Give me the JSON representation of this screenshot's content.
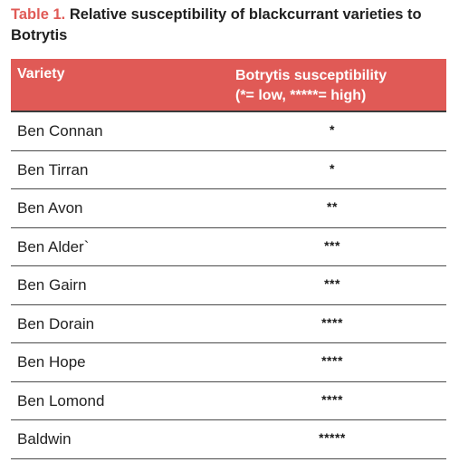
{
  "caption": {
    "label": "Table 1.",
    "title": "Relative susceptibility of blackcurrant varieties to Botrytis"
  },
  "table": {
    "headers": {
      "variety": "Variety",
      "susceptibility_line1": "Botrytis susceptibility",
      "susceptibility_line2": "(*= low, *****=  high)"
    },
    "rows": [
      {
        "variety": "Ben Connan",
        "score": "*"
      },
      {
        "variety": "Ben Tirran",
        "score": "*"
      },
      {
        "variety": "Ben Avon",
        "score": "**"
      },
      {
        "variety": "Ben Alder`",
        "score": "***"
      },
      {
        "variety": "Ben Gairn",
        "score": "***"
      },
      {
        "variety": "Ben Dorain",
        "score": "****"
      },
      {
        "variety": "Ben Hope",
        "score": "****"
      },
      {
        "variety": "Ben Lomond",
        "score": "****"
      },
      {
        "variety": "Baldwin",
        "score": "*****"
      }
    ]
  },
  "colors": {
    "accent": "#e05a56",
    "header_text": "#ffffff"
  }
}
